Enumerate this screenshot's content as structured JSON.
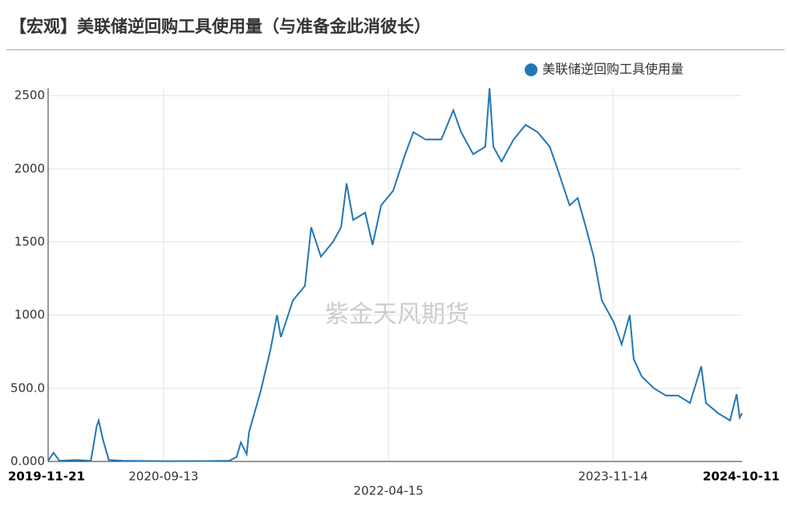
{
  "chart_data": {
    "type": "line",
    "title": "【宏观】美联储逆回购工具使用量（与准备金此消彼长）",
    "watermark": "紫金天风期货",
    "x": [
      "2019-11-21",
      "2019-12-05",
      "2019-12-20",
      "2020-02-01",
      "2020-03-10",
      "2020-03-25",
      "2020-03-30",
      "2020-04-10",
      "2020-04-25",
      "2020-06-01",
      "2020-09-13",
      "2021-01-01",
      "2021-03-01",
      "2021-03-20",
      "2021-03-31",
      "2021-04-15",
      "2021-04-21",
      "2021-05-21",
      "2021-06-15",
      "2021-07-02",
      "2021-07-12",
      "2021-08-12",
      "2021-09-12",
      "2021-09-28",
      "2021-10-23",
      "2021-11-23",
      "2021-12-14",
      "2021-12-28",
      "2022-01-14",
      "2022-02-14",
      "2022-03-05",
      "2022-03-27",
      "2022-04-27",
      "2022-05-28",
      "2022-06-18",
      "2022-07-19",
      "2022-08-29",
      "2022-09-29",
      "2022-10-19",
      "2022-11-19",
      "2022-12-20",
      "2022-12-31",
      "2023-01-10",
      "2023-01-31",
      "2023-03-03",
      "2023-04-03",
      "2023-05-04",
      "2023-06-04",
      "2023-06-24",
      "2023-07-25",
      "2023-08-15",
      "2023-09-05",
      "2023-09-25",
      "2023-10-16",
      "2023-11-16",
      "2023-12-06",
      "2023-12-27",
      "2024-01-06",
      "2024-01-27",
      "2024-02-27",
      "2024-03-29",
      "2024-04-29",
      "2024-05-30",
      "2024-06-28",
      "2024-07-10",
      "2024-08-10",
      "2024-09-10",
      "2024-09-27",
      "2024-10-05",
      "2024-10-11"
    ],
    "series": [
      {
        "name": "美联储逆回购工具使用量",
        "color": "#2477b5",
        "values": [
          5,
          60,
          5,
          10,
          5,
          240,
          280,
          150,
          10,
          5,
          2,
          3,
          5,
          30,
          130,
          50,
          200,
          480,
          760,
          1000,
          850,
          1100,
          1200,
          1600,
          1400,
          1500,
          1600,
          1900,
          1650,
          1700,
          1480,
          1750,
          1850,
          2100,
          2250,
          2200,
          2200,
          2400,
          2250,
          2100,
          2150,
          2550,
          2150,
          2050,
          2200,
          2300,
          2250,
          2150,
          2000,
          1750,
          1800,
          1600,
          1400,
          1100,
          950,
          800,
          1000,
          700,
          580,
          500,
          450,
          450,
          400,
          650,
          400,
          330,
          280,
          460,
          300,
          330
        ]
      }
    ],
    "xlim": [
      "2019-11-21",
      "2024-10-11"
    ],
    "xticks": [
      "2019-11-21",
      "2020-09-13",
      "2022-04-15",
      "2023-11-14",
      "2024-10-11"
    ],
    "ylim": [
      0,
      2550
    ],
    "yticks": [
      {
        "value": 0,
        "label": "0.000"
      },
      {
        "value": 500,
        "label": "500.0"
      },
      1000,
      1500,
      2000,
      2500
    ],
    "grid": true,
    "legend": "top-right"
  }
}
